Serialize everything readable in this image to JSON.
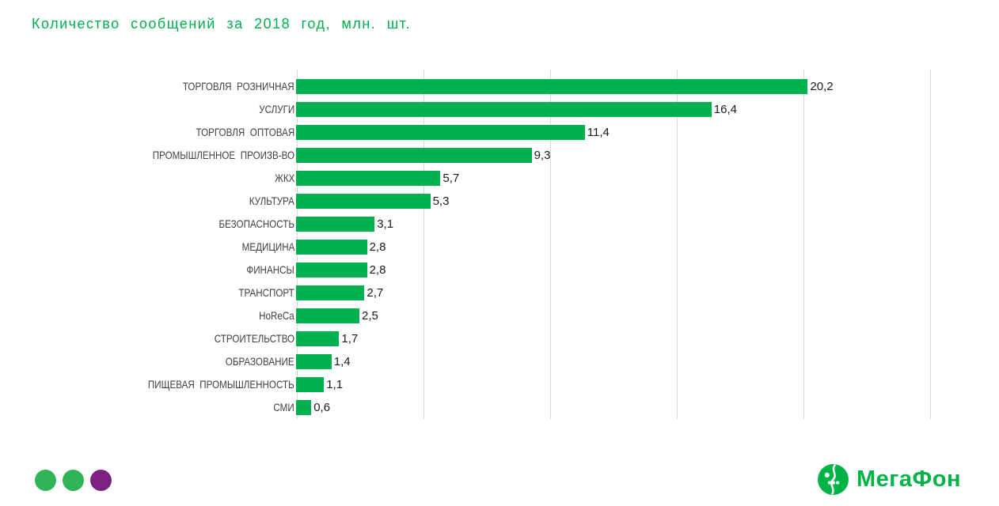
{
  "slide": {
    "title": "Количество сообщений за 2018 год, млн. шт."
  },
  "chart_data": {
    "type": "bar",
    "orientation": "horizontal",
    "title": "Количество сообщений за 2018 год, млн. шт.",
    "categories": [
      "ТОРГОВЛЯ РОЗНИЧНАЯ",
      "УСЛУГИ",
      "ТОРГОВЛЯ ОПТОВАЯ",
      "ПРОМЫШЛЕННОЕ ПРОИЗВ-ВО",
      "ЖКХ",
      "КУЛЬТУРА",
      "БЕЗОПАСНОСТЬ",
      "МЕДИЦИНА",
      "ФИНАНСЫ",
      "ТРАНСПОРТ",
      "HoReCa",
      "СТРОИТЕЛЬСТВО",
      "ОБРАЗОВАНИЕ",
      "ПИЩЕВАЯ ПРОМЫШЛЕННОСТЬ",
      "СМИ"
    ],
    "values": [
      20.2,
      16.4,
      11.4,
      9.3,
      5.7,
      5.3,
      3.1,
      2.8,
      2.8,
      2.7,
      2.5,
      1.7,
      1.4,
      1.1,
      0.6
    ],
    "value_labels": [
      "20,2",
      "16,4",
      "11,4",
      "9,3",
      "5,7",
      "5,3",
      "3,1",
      "2,8",
      "2,8",
      "2,7",
      "2,5",
      "1,7",
      "1,4",
      "1,1",
      "0,6"
    ],
    "xlabel": "",
    "ylabel": "",
    "xlim": [
      0,
      25
    ],
    "gridline_step": 5,
    "grid": true,
    "legend": false,
    "bar_color": "#00B04F",
    "gridline_color": "#D9D9D9"
  },
  "footer": {
    "dots": [
      "#2FB457",
      "#2FB457",
      "#7B2182"
    ],
    "logo": {
      "text": "МегаФон",
      "color": "#00B347"
    }
  }
}
